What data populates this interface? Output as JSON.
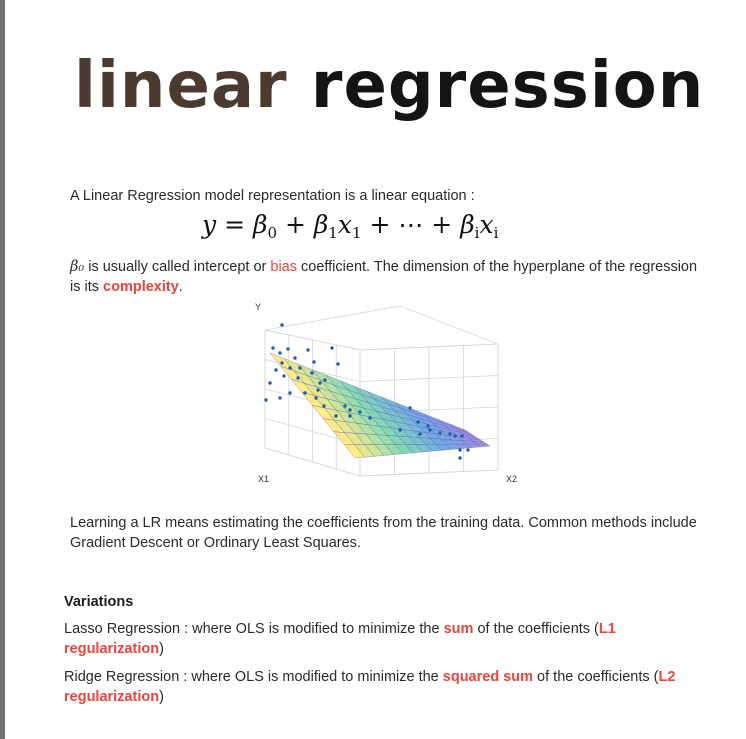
{
  "title": {
    "word1": "linear",
    "word2": "regression"
  },
  "intro": "A Linear Regression model representation is a linear equation :",
  "equation": {
    "lhs": "y",
    "eq": "=",
    "b0": "β",
    "b0_sub": "0",
    "plus1": "+",
    "b1": "β",
    "b1_sub": "1",
    "x1": "x",
    "x1_sub": "1",
    "plus2": "+ ⋯ +",
    "bi": "β",
    "bi_sub": "i",
    "xi": "x",
    "xi_sub": "i"
  },
  "p1": {
    "beta": "β₀",
    "t1": " is usually called intercept or ",
    "bias": "bias",
    "t2": " coefficient. The dimension of the hyperplane of the regression is its ",
    "complexity": "complexity",
    "t3": "."
  },
  "chart": {
    "y_label": "Y",
    "x1_label": "X1",
    "x2_label": "X2"
  },
  "p2": "Learning a LR means estimating the coefficients from the training data. Common methods include Gradient Descent or Ordinary Least Squares.",
  "variations": {
    "heading": "Variations",
    "lasso": {
      "t1": "Lasso Regression : where OLS is modified to minimize the ",
      "sum": "sum",
      "t2": " of the coefficients (",
      "reg": "L1 regularization",
      "t3": ")"
    },
    "ridge": {
      "t1": "Ridge Regression : where OLS is modified to minimize the ",
      "sq": "squared sum",
      "t2": " of the coefficients (",
      "reg": "L2 regularization",
      "t3": ")"
    }
  },
  "colors": {
    "accent": "#e8453c",
    "point": "#1f5fb0",
    "title_word1": "#4a3a30"
  }
}
